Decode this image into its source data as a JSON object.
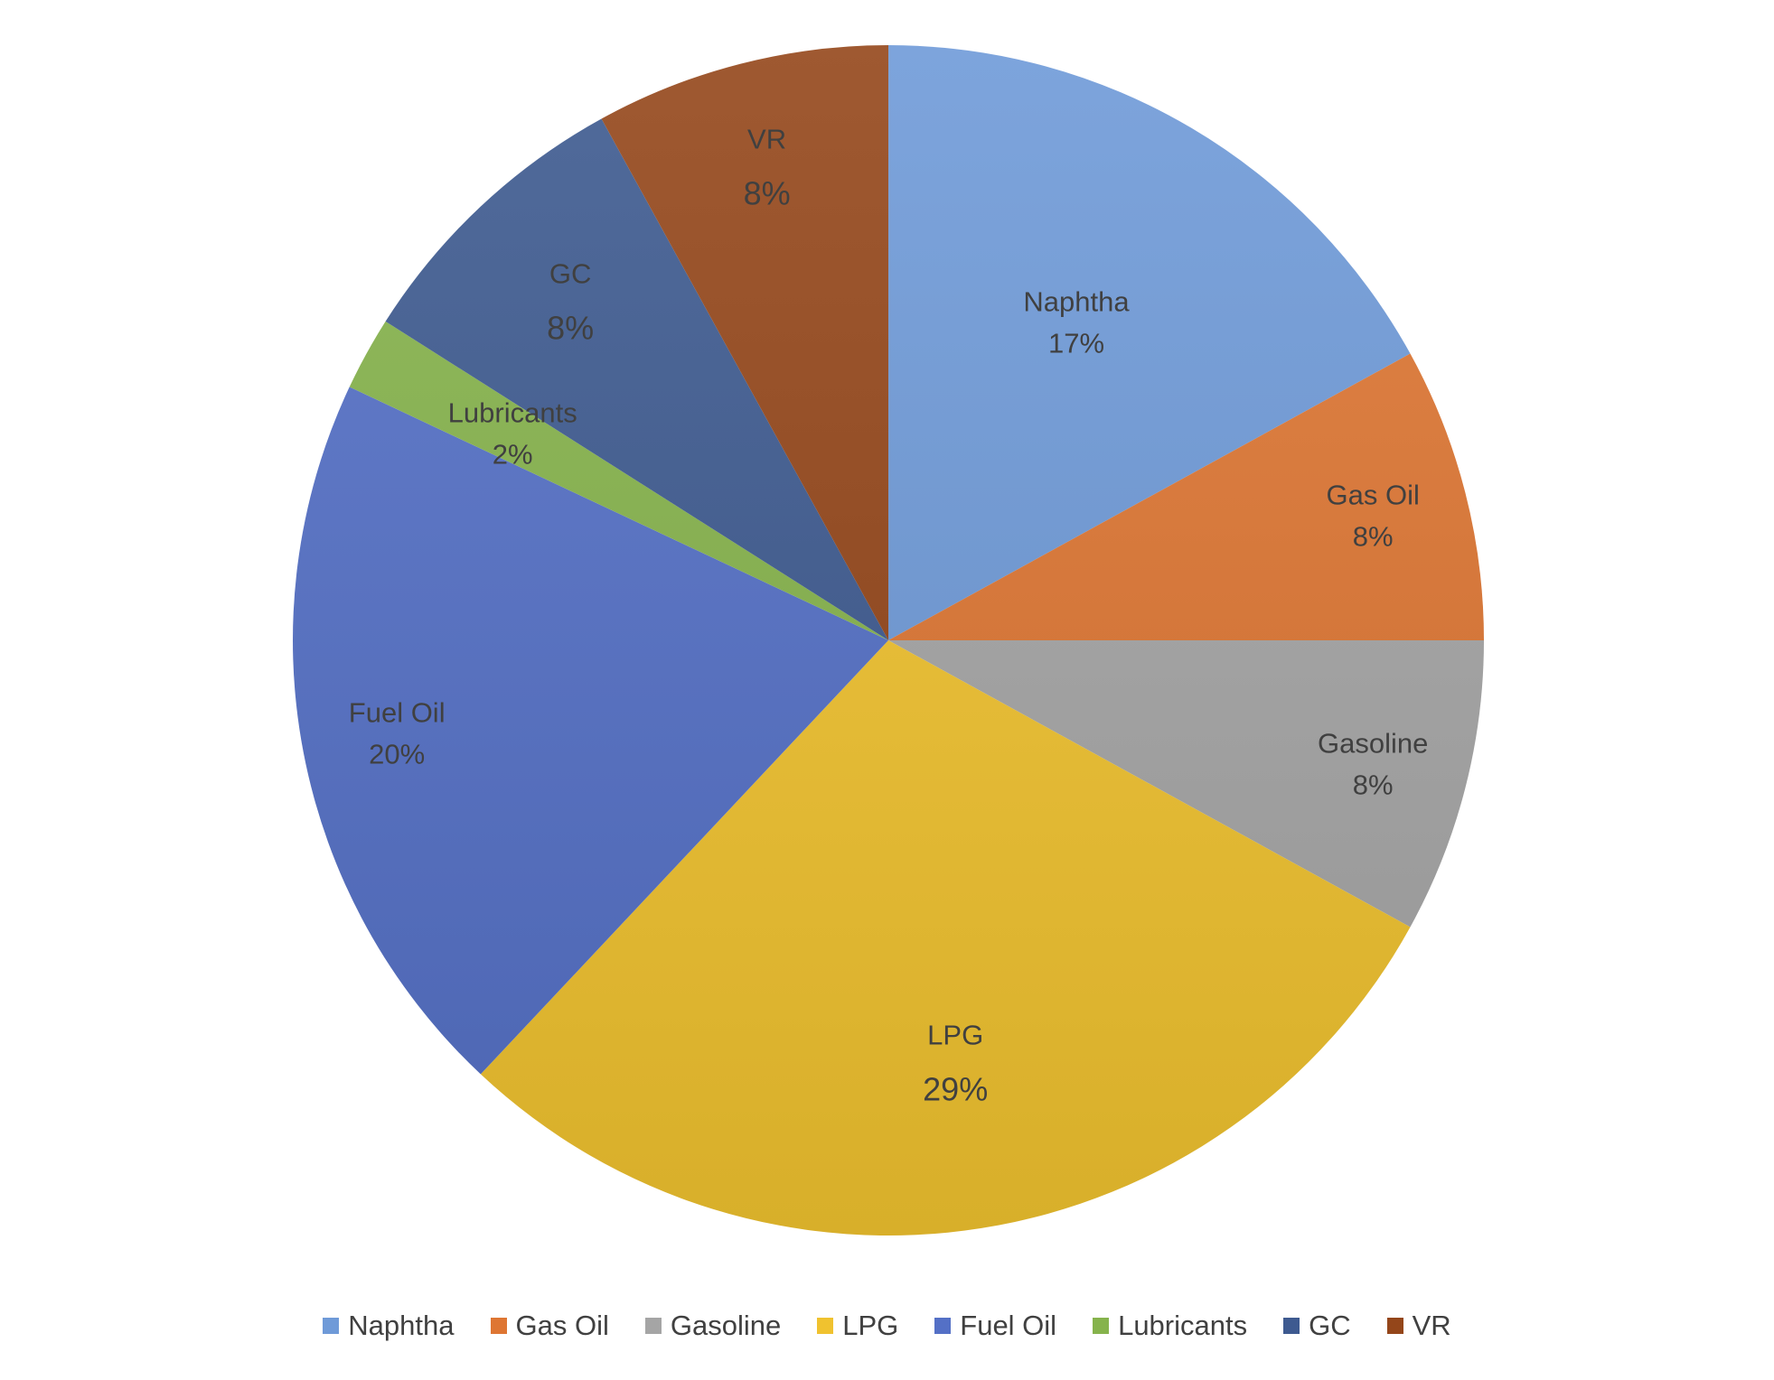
{
  "chart_data": {
    "type": "pie",
    "title": "",
    "legend_position": "bottom",
    "slices": [
      {
        "label": "Naphtha",
        "value": 17,
        "display": "17%",
        "color": "#6f9ad8"
      },
      {
        "label": "Gas Oil",
        "value": 8,
        "display": "8%",
        "color": "#de7633"
      },
      {
        "label": "Gasoline",
        "value": 8,
        "display": "8%",
        "color": "#a5a5a5"
      },
      {
        "label": "LPG",
        "value": 29,
        "display": "29%",
        "color": "#f0c22f"
      },
      {
        "label": "Fuel Oil",
        "value": 20,
        "display": "20%",
        "color": "#5470c6"
      },
      {
        "label": "Lubricants",
        "value": 2,
        "display": "2%",
        "color": "#86b34c"
      },
      {
        "label": "GC",
        "value": 8,
        "display": "8%",
        "color": "#3e5a90"
      },
      {
        "label": "VR",
        "value": 8,
        "display": "8%",
        "color": "#94461a"
      }
    ]
  }
}
